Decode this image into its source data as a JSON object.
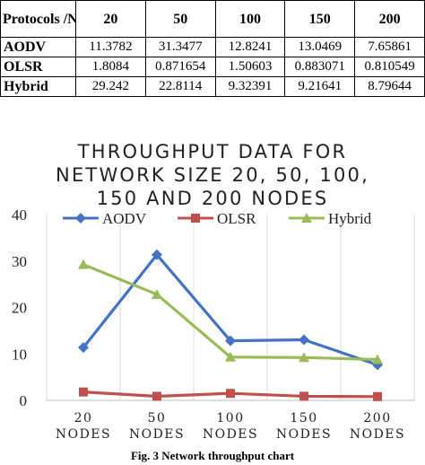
{
  "table": {
    "header": [
      "Protocols /Nodes",
      "20",
      "50",
      "100",
      "150",
      "200"
    ],
    "rows": [
      {
        "protocol": "AODV",
        "values": [
          "11.3782",
          "31.3477",
          "12.8241",
          "13.0469",
          "7.65861"
        ]
      },
      {
        "protocol": "OLSR",
        "values": [
          "1.8084",
          "0.871654",
          "1.50603",
          "0.883071",
          "0.810549"
        ]
      },
      {
        "protocol": "Hybrid",
        "values": [
          "29.242",
          "22.8114",
          "9.32391",
          "9.21641",
          "8.79644"
        ]
      }
    ]
  },
  "chart_data": {
    "type": "line",
    "title": "THROUGHPUT DATA FOR NETWORK SIZE 20, 50, 100, 150 AND 200 NODES",
    "title_lines": [
      "THROUGHPUT DATA FOR",
      "NETWORK SIZE 20, 50, 100,",
      "150 AND 200 NODES"
    ],
    "categories": [
      "20 NODES",
      "50 NODES",
      "100 NODES",
      "150 NODES",
      "200 NODES"
    ],
    "category_lines": [
      [
        "20",
        "NODES"
      ],
      [
        "50",
        "NODES"
      ],
      [
        "100",
        "NODES"
      ],
      [
        "150",
        "NODES"
      ],
      [
        "200",
        "NODES"
      ]
    ],
    "series": [
      {
        "name": "AODV",
        "values": [
          11.3782,
          31.3477,
          12.8241,
          13.0469,
          7.65861
        ],
        "color": "#4472C4",
        "marker": "diamond"
      },
      {
        "name": "OLSR",
        "values": [
          1.8084,
          0.871654,
          1.50603,
          0.883071,
          0.810549
        ],
        "color": "#C0504D",
        "marker": "square"
      },
      {
        "name": "Hybrid",
        "values": [
          29.242,
          22.8114,
          9.32391,
          9.21641,
          8.79644
        ],
        "color": "#9BBB59",
        "marker": "triangle"
      }
    ],
    "yticks": [
      0,
      10,
      20,
      30,
      40
    ],
    "ylim": [
      0,
      40
    ],
    "grid": "vertical",
    "legend": "top"
  },
  "caption": "Fig. 3 Network throughput chart"
}
